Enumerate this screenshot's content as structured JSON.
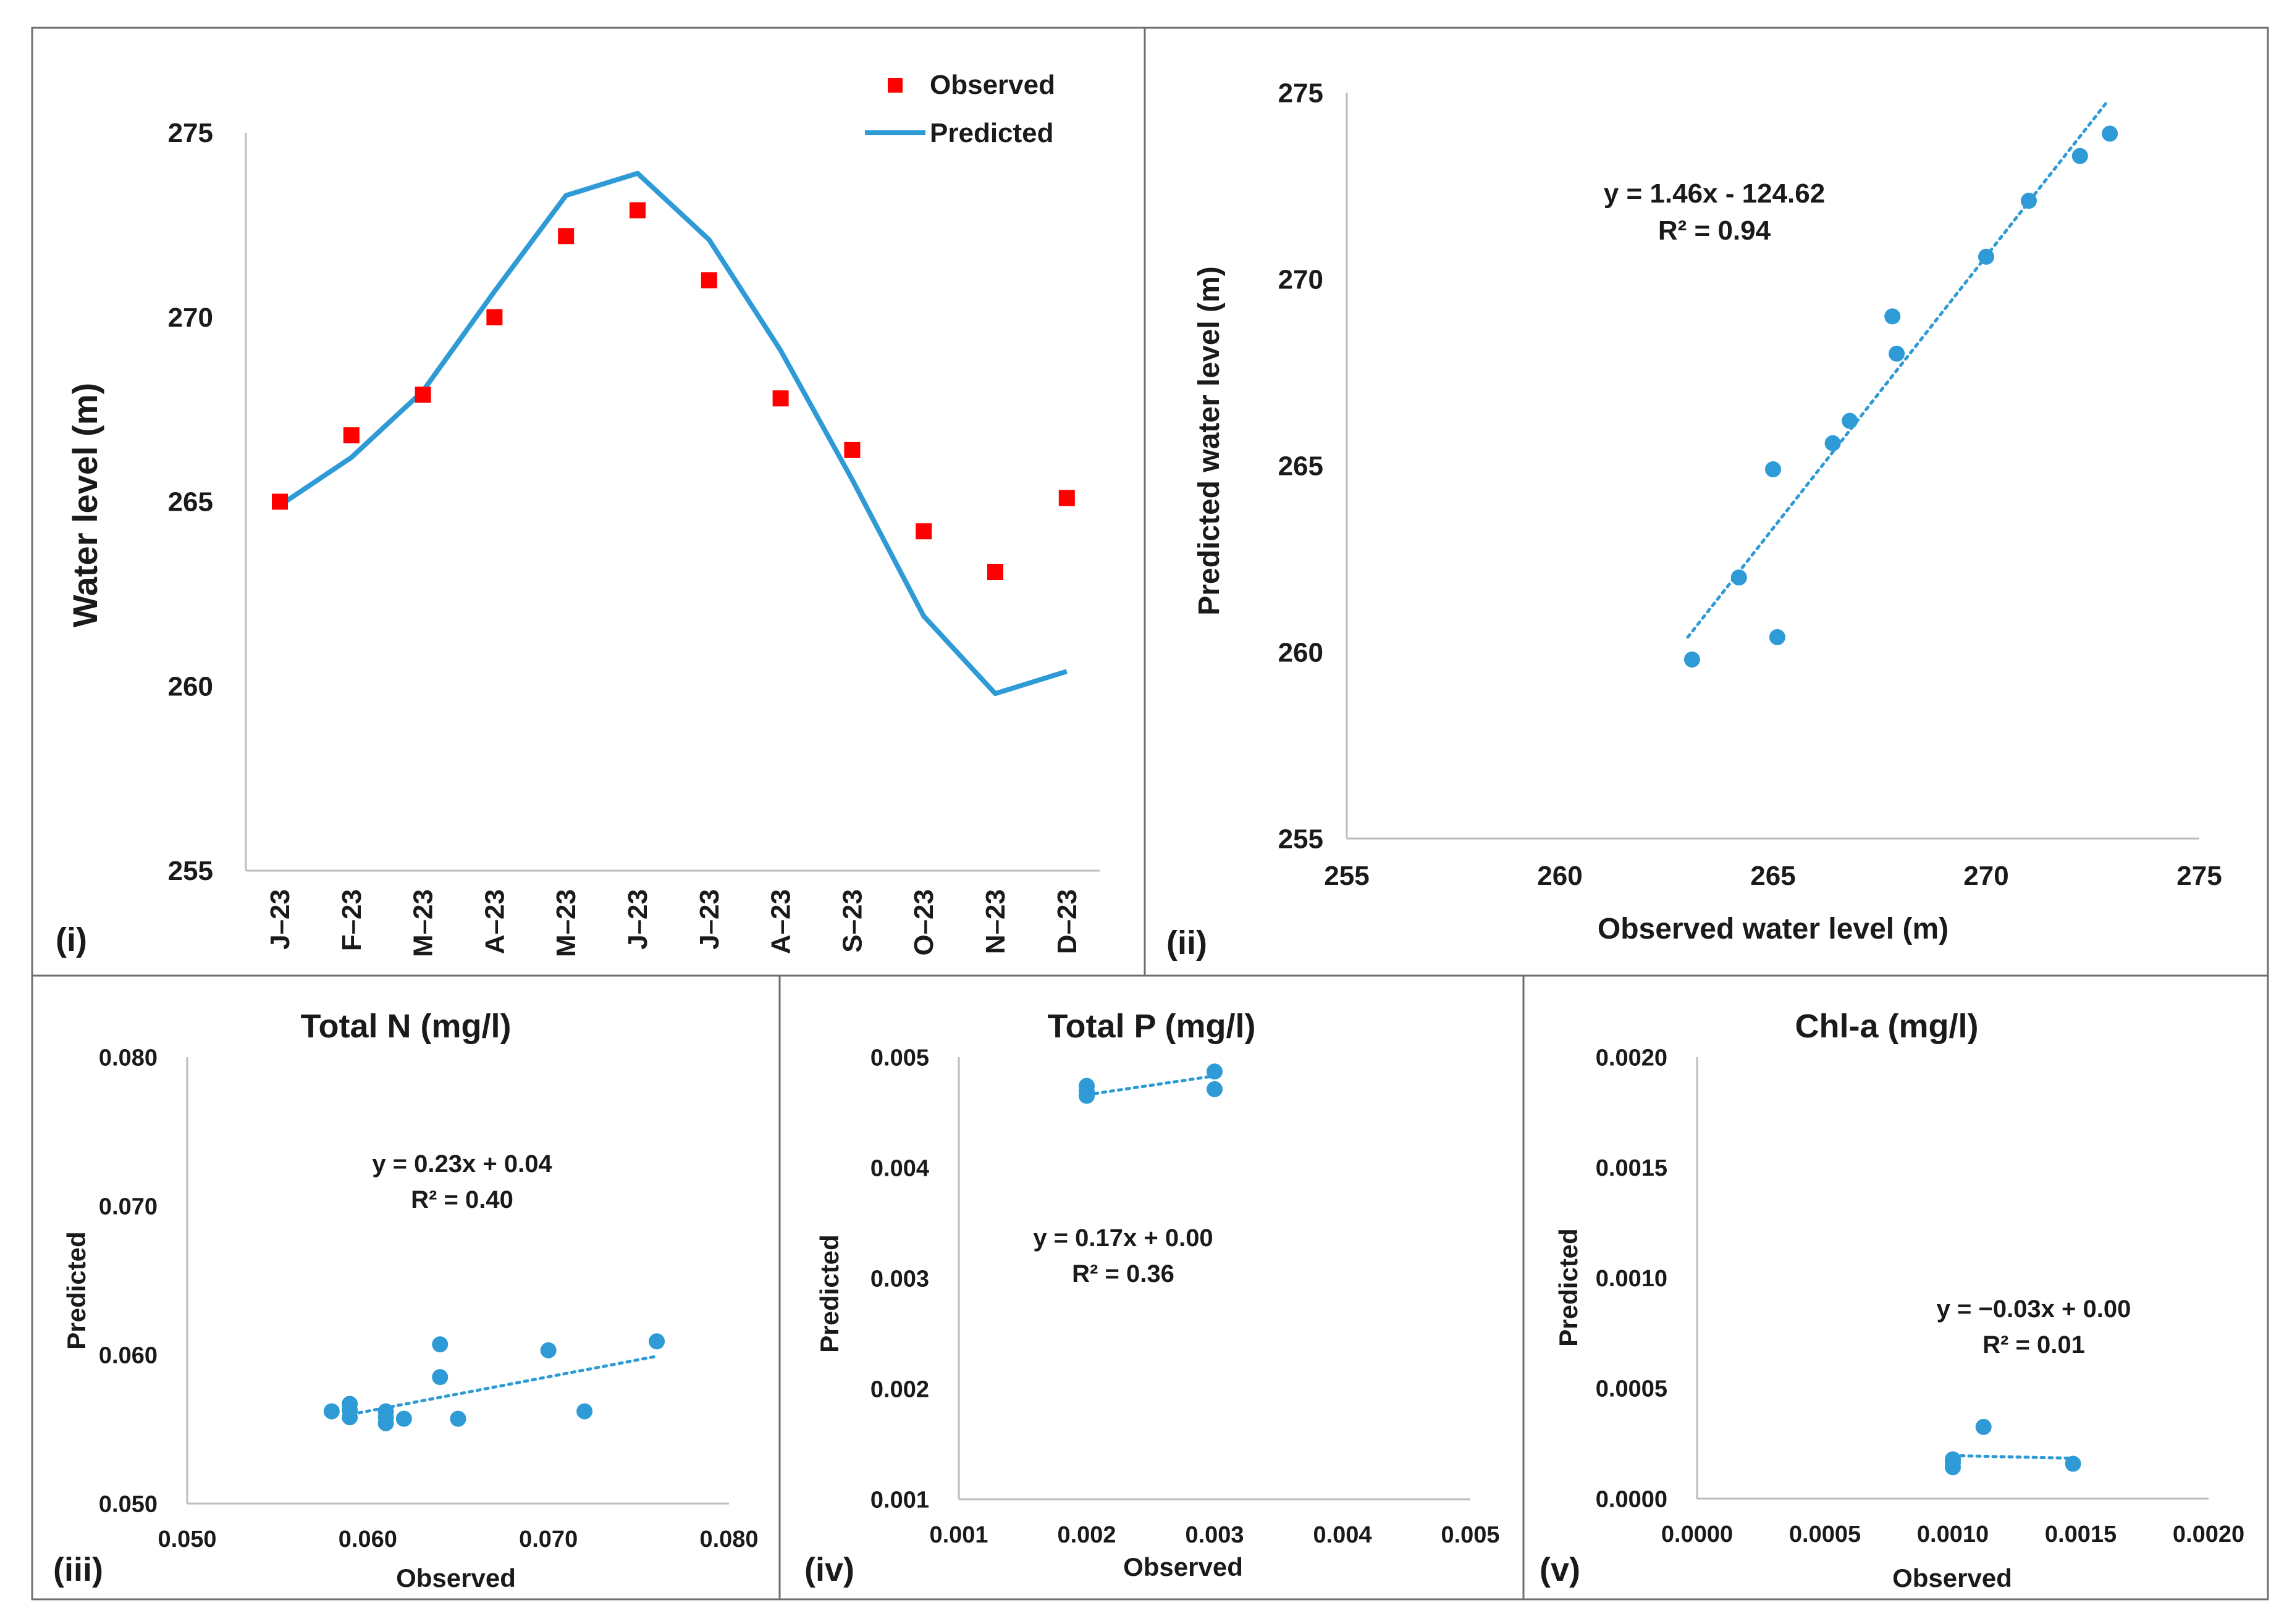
{
  "colors": {
    "observed": "#ff0000",
    "series": "#2e9bd6",
    "frame": "#6e6e6e",
    "axis": "#bdbdbd",
    "text": "#1a1a1a"
  },
  "chart_data": [
    {
      "id": "p1",
      "type": "line",
      "panel_label": "(i)",
      "title": "",
      "ylabel": "Water level (m)",
      "xlabel": "",
      "ylim": [
        255,
        275
      ],
      "yticks": [
        "255",
        "260",
        "265",
        "270",
        "275"
      ],
      "categories": [
        "J–23",
        "F–23",
        "M–23",
        "A–23",
        "M–23",
        "J–23",
        "J–23",
        "A–23",
        "S–23",
        "O–23",
        "N–23",
        "D–23"
      ],
      "legend_position": "top-right",
      "series": [
        {
          "name": "Observed",
          "kind": "marker",
          "values": [
            265.0,
            266.8,
            267.9,
            270.0,
            272.2,
            272.9,
            271.0,
            267.8,
            266.4,
            264.2,
            263.1,
            265.1
          ]
        },
        {
          "name": "Predicted",
          "kind": "line",
          "values": [
            264.9,
            266.2,
            268.0,
            270.7,
            273.3,
            273.9,
            272.1,
            269.1,
            265.6,
            261.9,
            259.8,
            260.4
          ]
        }
      ]
    },
    {
      "id": "p2",
      "type": "scatter",
      "panel_label": "(ii)",
      "title": "",
      "xlabel": "Observed water level (m)",
      "ylabel": "Predicted water level (m)",
      "xlim": [
        255,
        275
      ],
      "ylim": [
        255,
        275
      ],
      "xticks": [
        "255",
        "260",
        "265",
        "270",
        "275"
      ],
      "yticks": [
        "255",
        "260",
        "265",
        "270",
        "275"
      ],
      "equation": "y = 1.46x - 124.62",
      "r2": "R² = 0.94",
      "trend": [
        [
          263.0,
          260.4
        ],
        [
          272.8,
          274.7
        ]
      ],
      "points": [
        [
          263.1,
          259.8
        ],
        [
          264.2,
          262.0
        ],
        [
          265.0,
          264.9
        ],
        [
          265.1,
          260.4
        ],
        [
          266.4,
          265.6
        ],
        [
          266.8,
          266.2
        ],
        [
          267.8,
          269.0
        ],
        [
          267.9,
          268.0
        ],
        [
          270.0,
          270.6
        ],
        [
          271.0,
          272.1
        ],
        [
          272.2,
          273.3
        ],
        [
          272.9,
          273.9
        ]
      ]
    },
    {
      "id": "p3",
      "type": "scatter",
      "panel_label": "(iii)",
      "title": "Total N (mg/l)",
      "xlabel": "Observed",
      "ylabel": "Predicted",
      "xlim": [
        0.05,
        0.08
      ],
      "ylim": [
        0.05,
        0.08
      ],
      "xticks": [
        "0.050",
        "0.060",
        "0.070",
        "0.080"
      ],
      "yticks": [
        "0.050",
        "0.060",
        "0.070",
        "0.080"
      ],
      "equation": "y = 0.23x + 0.04",
      "r2": "R² = 0.40",
      "trend": [
        [
          0.0595,
          0.0561
        ],
        [
          0.076,
          0.0599
        ]
      ],
      "points": [
        [
          0.058,
          0.0562
        ],
        [
          0.059,
          0.0567
        ],
        [
          0.059,
          0.0563
        ],
        [
          0.059,
          0.0558
        ],
        [
          0.061,
          0.0562
        ],
        [
          0.061,
          0.0558
        ],
        [
          0.061,
          0.0554
        ],
        [
          0.062,
          0.0557
        ],
        [
          0.064,
          0.0607
        ],
        [
          0.064,
          0.0585
        ],
        [
          0.065,
          0.0557
        ],
        [
          0.07,
          0.0603
        ],
        [
          0.072,
          0.0562
        ],
        [
          0.076,
          0.0609
        ]
      ]
    },
    {
      "id": "p4",
      "type": "scatter",
      "panel_label": "(iv)",
      "title": "Total P (mg/l)",
      "xlabel": "Observed",
      "ylabel": "Predicted",
      "xlim": [
        0.001,
        0.005
      ],
      "ylim": [
        0.001,
        0.005
      ],
      "xticks": [
        "0.001",
        "0.002",
        "0.003",
        "0.004",
        "0.005"
      ],
      "yticks": [
        "0.001",
        "0.002",
        "0.003",
        "0.004",
        "0.005"
      ],
      "equation": "y = 0.17x + 0.00",
      "r2": "R² = 0.36",
      "trend": [
        [
          0.002,
          0.00466
        ],
        [
          0.003,
          0.00483
        ]
      ],
      "points": [
        [
          0.002,
          0.00474
        ],
        [
          0.002,
          0.00469
        ],
        [
          0.002,
          0.00465
        ],
        [
          0.003,
          0.00487
        ],
        [
          0.003,
          0.00471
        ]
      ]
    },
    {
      "id": "p5",
      "type": "scatter",
      "panel_label": "(v)",
      "title": "Chl-a (mg/l)",
      "xlabel": "Observed",
      "ylabel": "Predicted",
      "xlim": [
        0,
        0.002
      ],
      "ylim": [
        0,
        0.002
      ],
      "xticks": [
        "0.0000",
        "0.0005",
        "0.0010",
        "0.0015",
        "0.0020"
      ],
      "yticks": [
        "0.0000",
        "0.0005",
        "0.0010",
        "0.0015",
        "0.0020"
      ],
      "equation": "y = −0.03x + 0.00",
      "r2": "R² = 0.01",
      "trend": [
        [
          0.001,
          0.000195
        ],
        [
          0.00147,
          0.000183
        ]
      ],
      "points": [
        [
          0.001,
          0.000142
        ],
        [
          0.001,
          0.000163
        ],
        [
          0.001,
          0.000178
        ],
        [
          0.00112,
          0.000325
        ],
        [
          0.00147,
          0.000158
        ]
      ]
    }
  ]
}
